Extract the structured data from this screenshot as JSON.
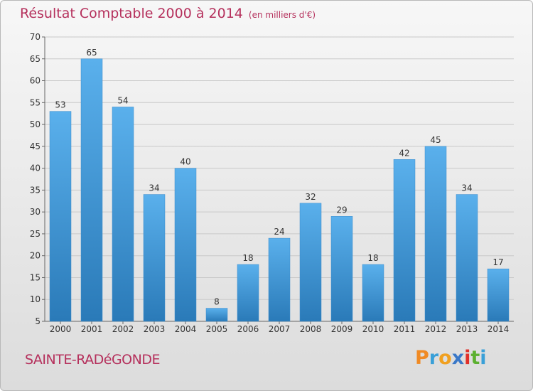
{
  "title": {
    "main": "Résultat Comptable 2000 à 2014",
    "sub": "(en milliers d'€)"
  },
  "commune": "SAINTE-RADéGONDE",
  "logo": {
    "text": "Proxiti",
    "letters": [
      "P",
      "r",
      "o",
      "x",
      "i",
      "t",
      "i"
    ],
    "colors": [
      "#f08a24",
      "#3aa0d8",
      "#f0a020",
      "#3a78c8",
      "#e0302a",
      "#5cb030",
      "#3aa0d8"
    ]
  },
  "colors": {
    "title": "#b5305c",
    "bar_light": "#5ab0ec",
    "bar_dark": "#2a7ab8"
  },
  "chart_data": {
    "type": "bar",
    "title": "Résultat Comptable 2000 à 2014",
    "subtitle": "(en milliers d'€)",
    "categories": [
      "2000",
      "2001",
      "2002",
      "2003",
      "2004",
      "2005",
      "2006",
      "2007",
      "2008",
      "2009",
      "2010",
      "2011",
      "2012",
      "2013",
      "2014"
    ],
    "values": [
      53,
      65,
      54,
      34,
      40,
      8,
      18,
      24,
      32,
      29,
      18,
      42,
      45,
      34,
      17
    ],
    "xlabel": "",
    "ylabel": "",
    "ylim": [
      5,
      70
    ],
    "yticks": [
      5,
      10,
      15,
      20,
      25,
      30,
      35,
      40,
      45,
      50,
      55,
      60,
      65,
      70
    ],
    "grid": true
  }
}
